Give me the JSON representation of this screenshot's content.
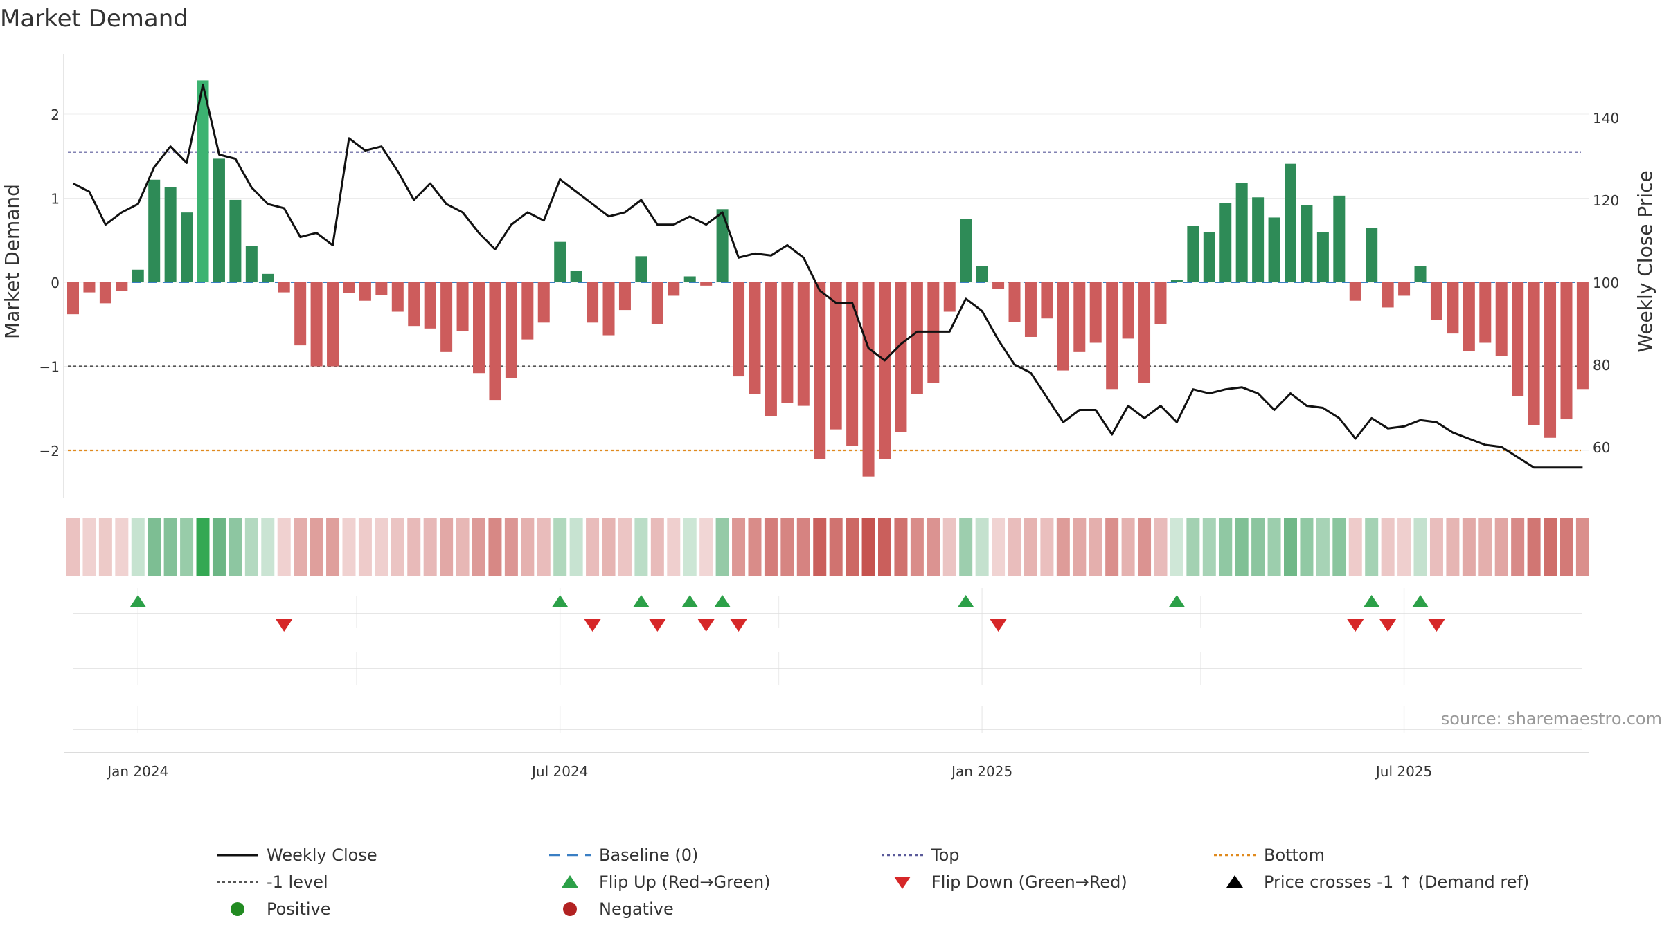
{
  "chart_data": {
    "type": "bar",
    "title": "Market Demand",
    "ylabel_left": "Market Demand",
    "ylabel_right": "Weekly Close Price",
    "source": "source: sharemaestro.com",
    "left_ylim": [
      -2.6,
      2.6
    ],
    "left_yticks": [
      2,
      1,
      0,
      -1,
      -2
    ],
    "left_ytick_labels": [
      "2",
      "1",
      "0",
      "−1",
      "−2"
    ],
    "right_ylim": [
      47.0,
      153.0
    ],
    "right_yticks": [
      140,
      120,
      100,
      80,
      60
    ],
    "right_ytick_labels": [
      "140",
      "120",
      "100",
      "80",
      "60"
    ],
    "x_ticks": [
      {
        "week": 4,
        "label": "Jan 2024"
      },
      {
        "week": 30,
        "label": "Jul 2024"
      },
      {
        "week": 56,
        "label": "Jan 2025"
      },
      {
        "week": 82,
        "label": "Jul 2025"
      }
    ],
    "reference_lines": {
      "top": 1.55,
      "minus_one": -1.0,
      "bottom": -2.0,
      "baseline": 0
    },
    "demand": [
      -0.38,
      -0.12,
      -0.25,
      -0.1,
      0.15,
      1.22,
      1.13,
      0.83,
      2.4,
      1.47,
      0.98,
      0.43,
      0.1,
      -0.12,
      -0.75,
      -1.0,
      -1.0,
      -0.13,
      -0.22,
      -0.15,
      -0.35,
      -0.52,
      -0.55,
      -0.83,
      -0.58,
      -1.08,
      -1.4,
      -1.14,
      -0.68,
      -0.48,
      0.48,
      0.14,
      -0.48,
      -0.63,
      -0.33,
      0.31,
      -0.5,
      -0.16,
      0.07,
      -0.04,
      0.87,
      -1.12,
      -1.33,
      -1.59,
      -1.44,
      -1.47,
      -2.1,
      -1.75,
      -1.95,
      -2.31,
      -2.1,
      -1.78,
      -1.33,
      -1.2,
      -0.35,
      0.75,
      0.19,
      -0.08,
      -0.47,
      -0.65,
      -0.43,
      -1.05,
      -0.83,
      -0.72,
      -1.27,
      -0.67,
      -1.2,
      -0.5,
      0.03,
      0.67,
      0.6,
      0.94,
      1.18,
      1.01,
      0.77,
      1.41,
      0.92,
      0.6,
      1.03,
      -0.22,
      0.65,
      -0.3,
      -0.16,
      0.19,
      -0.45,
      -0.61,
      -0.82,
      -0.72,
      -0.88,
      -1.35,
      -1.7,
      -1.85,
      -1.63,
      -1.27
    ],
    "weekly_close": [
      124,
      122,
      114,
      117,
      119,
      128,
      133,
      129,
      148,
      131,
      130,
      123,
      119,
      118,
      111,
      112,
      109,
      135,
      132,
      133,
      127,
      120,
      124,
      119,
      117,
      112,
      108,
      114,
      117,
      115,
      125,
      122,
      119,
      116,
      117,
      120,
      114,
      114,
      116,
      114,
      117,
      106,
      107,
      106.5,
      109,
      106,
      98,
      95,
      95,
      84,
      81,
      85,
      88,
      88,
      88,
      96,
      93,
      86,
      80,
      78,
      72,
      66,
      69,
      69,
      63,
      70,
      67,
      70,
      66,
      74,
      73,
      74,
      74.5,
      73,
      69,
      73,
      70,
      69.5,
      67,
      62,
      67,
      64.5,
      65,
      66.5,
      66,
      63.5,
      62,
      60.5,
      60,
      57.5,
      55,
      55,
      55,
      55
    ],
    "heat_strip": {
      "positive_color": "#2e8b57",
      "negative_color": "#cd5c5c",
      "bright_color": "#3cb371"
    },
    "flip_up_weeks": [
      4,
      30,
      35,
      38,
      40,
      55,
      68,
      80,
      83
    ],
    "flip_down_weeks": [
      13,
      32,
      36,
      39,
      41,
      57,
      79,
      81,
      84
    ],
    "legend": [
      {
        "label": "Weekly Close",
        "marker": "line-solid",
        "color": "#111111"
      },
      {
        "label": "Baseline (0)",
        "marker": "line-dash",
        "color": "#3a7fc4"
      },
      {
        "label": "Top",
        "marker": "line-dot",
        "color": "#5a5a9a"
      },
      {
        "label": "Bottom",
        "marker": "line-dot",
        "color": "#e08a1e"
      },
      {
        "label": "-1 level",
        "marker": "line-dot",
        "color": "#555555"
      },
      {
        "label": "Flip Up (Red→Green)",
        "marker": "triangle-up",
        "color": "#2ca048"
      },
      {
        "label": "Flip Down (Green→Red)",
        "marker": "triangle-down",
        "color": "#d62728"
      },
      {
        "label": "Price crosses -1 ↑ (Demand ref)",
        "marker": "triangle-up",
        "color": "#000000"
      },
      {
        "label": "Positive",
        "marker": "circle",
        "color": "#228b22"
      },
      {
        "label": "Negative",
        "marker": "circle",
        "color": "#b22222"
      }
    ]
  }
}
